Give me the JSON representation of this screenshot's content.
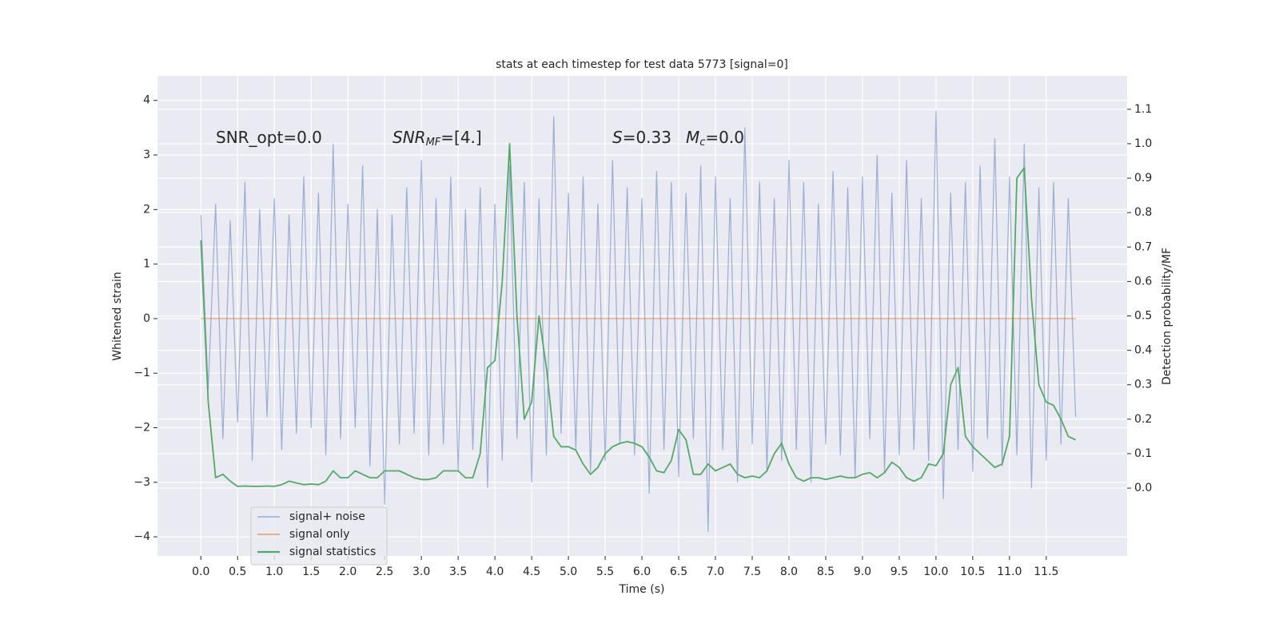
{
  "chart_data": {
    "type": "line",
    "title": "stats at each timestep for test data 5773 [signal=0]",
    "xlabel": "Time (s)",
    "ylabel": "Whitened strain",
    "y2label": "Detection probability/MF",
    "xlim": [
      -0.59,
      12.6
    ],
    "ylim": [
      -4.35,
      4.45
    ],
    "y2lim": [
      -0.197,
      1.197
    ],
    "grid": true,
    "legend": "lower left",
    "xticks": [
      {
        "value": 0,
        "label": "0.0"
      },
      {
        "value": 0.5,
        "label": "0.5"
      },
      {
        "value": 1,
        "label": "1.0"
      },
      {
        "value": 1.5,
        "label": "1.5"
      },
      {
        "value": 2,
        "label": "2.0"
      },
      {
        "value": 2.5,
        "label": "2.5"
      },
      {
        "value": 3,
        "label": "3.0"
      },
      {
        "value": 3.5,
        "label": "3.5"
      },
      {
        "value": 4,
        "label": "4.0"
      },
      {
        "value": 4.5,
        "label": "4.5"
      },
      {
        "value": 5,
        "label": "5.0"
      },
      {
        "value": 5.5,
        "label": "5.5"
      },
      {
        "value": 6,
        "label": "6.0"
      },
      {
        "value": 6.5,
        "label": "6.5"
      },
      {
        "value": 7,
        "label": "7.0"
      },
      {
        "value": 7.5,
        "label": "7.5"
      },
      {
        "value": 8,
        "label": "8.0"
      },
      {
        "value": 8.5,
        "label": "8.5"
      },
      {
        "value": 9,
        "label": "9.0"
      },
      {
        "value": 9.5,
        "label": "9.5"
      },
      {
        "value": 10,
        "label": "10.0"
      },
      {
        "value": 10.5,
        "label": "10.5"
      },
      {
        "value": 11,
        "label": "11.0"
      },
      {
        "value": 11.5,
        "label": "11.5"
      }
    ],
    "yticks": [
      {
        "value": -4,
        "label": "−4"
      },
      {
        "value": -3,
        "label": "−3"
      },
      {
        "value": -2,
        "label": "−2"
      },
      {
        "value": -1,
        "label": "−1"
      },
      0,
      1,
      2,
      3,
      4
    ],
    "y2ticks": [
      {
        "value": 0,
        "label": "0.0"
      },
      {
        "value": 0.1,
        "label": "0.1"
      },
      {
        "value": 0.2,
        "label": "0.2"
      },
      {
        "value": 0.3,
        "label": "0.3"
      },
      {
        "value": 0.4,
        "label": "0.4"
      },
      {
        "value": 0.5,
        "label": "0.5"
      },
      {
        "value": 0.6,
        "label": "0.6"
      },
      {
        "value": 0.7,
        "label": "0.7"
      },
      {
        "value": 0.8,
        "label": "0.8"
      },
      {
        "value": 0.9,
        "label": "0.9"
      },
      {
        "value": 1.0,
        "label": "1.0"
      },
      {
        "value": 1.1,
        "label": "1.1"
      }
    ],
    "annotations": [
      [
        "SNR_opt=0.0"
      ],
      [
        "SNR",
        "MF",
        "=[4.]"
      ],
      [
        "S",
        "=0.33"
      ],
      [
        "M",
        "c",
        "=0.0"
      ]
    ],
    "x": [
      0,
      0.1,
      0.2,
      0.3,
      0.4,
      0.5,
      0.6,
      0.7,
      0.8,
      0.9,
      1,
      1.1,
      1.2,
      1.3,
      1.4,
      1.5,
      1.6,
      1.7,
      1.8,
      1.9,
      2,
      2.1,
      2.2,
      2.3,
      2.4,
      2.5,
      2.6,
      2.7,
      2.8,
      2.9,
      3,
      3.1,
      3.2,
      3.3,
      3.4,
      3.5,
      3.6,
      3.7,
      3.8,
      3.9,
      4,
      4.1,
      4.2,
      4.3,
      4.4,
      4.5,
      4.6,
      4.7,
      4.8,
      4.9,
      5,
      5.1,
      5.2,
      5.3,
      5.4,
      5.5,
      5.6,
      5.7,
      5.8,
      5.9,
      6,
      6.1,
      6.2,
      6.3,
      6.4,
      6.5,
      6.6,
      6.7,
      6.8,
      6.9,
      7,
      7.1,
      7.2,
      7.3,
      7.4,
      7.5,
      7.6,
      7.7,
      7.8,
      7.9,
      8,
      8.1,
      8.2,
      8.3,
      8.4,
      8.5,
      8.6,
      8.7,
      8.8,
      8.9,
      9,
      9.1,
      9.2,
      9.3,
      9.4,
      9.5,
      9.6,
      9.7,
      9.8,
      9.9,
      10,
      10.1,
      10.2,
      10.3,
      10.4,
      10.5,
      10.6,
      10.7,
      10.8,
      10.9,
      11,
      11.1,
      11.2,
      11.3,
      11.4,
      11.5,
      11.6,
      11.7,
      11.8,
      11.9
    ],
    "series": [
      {
        "name": "signal+ noise",
        "color": "#4c72b0",
        "values": [
          1.9,
          -1.3,
          2.1,
          -2.2,
          1.8,
          -1.9,
          2.5,
          -2.6,
          2.0,
          -1.8,
          2.2,
          -2.4,
          1.9,
          -2.1,
          2.6,
          -2.0,
          2.3,
          -2.5,
          3.2,
          -2.2,
          2.1,
          -2.0,
          2.8,
          -2.7,
          2.0,
          -3.4,
          1.9,
          -2.3,
          2.4,
          -2.1,
          2.9,
          -2.5,
          2.2,
          -2.3,
          2.6,
          -2.8,
          2.0,
          -2.4,
          2.4,
          -3.1,
          2.1,
          -2.6,
          2.8,
          -2.2,
          2.5,
          -3.0,
          2.2,
          -2.5,
          3.7,
          -2.1,
          2.3,
          -2.4,
          2.6,
          -2.8,
          2.1,
          -2.6,
          2.9,
          -2.3,
          2.4,
          -2.5,
          2.2,
          -3.2,
          2.7,
          -2.4,
          2.5,
          -2.9,
          2.3,
          -2.2,
          2.8,
          -3.9,
          2.6,
          -2.4,
          2.2,
          -3.0,
          3.5,
          -2.3,
          2.5,
          -2.8,
          2.2,
          -2.6,
          2.9,
          -2.4,
          2.5,
          -3.0,
          2.1,
          -2.3,
          2.7,
          -2.5,
          2.4,
          -2.9,
          2.6,
          -2.2,
          3.0,
          -2.8,
          2.3,
          -2.5,
          2.9,
          -2.4,
          2.2,
          -2.6,
          3.8,
          -3.3,
          2.3,
          -2.4,
          2.5,
          -2.8,
          2.8,
          -2.2,
          3.3,
          -2.7,
          2.6,
          -2.5,
          3.2,
          -3.1,
          2.4,
          -2.6,
          2.5,
          -2.3,
          2.2,
          -1.8
        ]
      },
      {
        "name": "signal only",
        "color": "#dd8452",
        "values": [
          0,
          0,
          0,
          0,
          0,
          0,
          0,
          0,
          0,
          0,
          0,
          0,
          0,
          0,
          0,
          0,
          0,
          0,
          0,
          0,
          0,
          0,
          0,
          0,
          0,
          0,
          0,
          0,
          0,
          0,
          0,
          0,
          0,
          0,
          0,
          0,
          0,
          0,
          0,
          0,
          0,
          0,
          0,
          0,
          0,
          0,
          0,
          0,
          0,
          0,
          0,
          0,
          0,
          0,
          0,
          0,
          0,
          0,
          0,
          0,
          0,
          0,
          0,
          0,
          0,
          0,
          0,
          0,
          0,
          0,
          0,
          0,
          0,
          0,
          0,
          0,
          0,
          0,
          0,
          0,
          0,
          0,
          0,
          0,
          0,
          0,
          0,
          0,
          0,
          0,
          0,
          0,
          0,
          0,
          0,
          0,
          0,
          0,
          0,
          0,
          0,
          0,
          0,
          0,
          0,
          0,
          0,
          0,
          0,
          0,
          0,
          0,
          0,
          0,
          0,
          0,
          0,
          0,
          0,
          0
        ]
      },
      {
        "name": "signal statistics",
        "color": "#55a868",
        "axis": "y2",
        "values": [
          0.72,
          0.25,
          0.03,
          0.04,
          0.02,
          0.005,
          0.006,
          0.005,
          0.005,
          0.006,
          0.005,
          0.01,
          0.02,
          0.015,
          0.01,
          0.012,
          0.01,
          0.02,
          0.05,
          0.03,
          0.03,
          0.05,
          0.04,
          0.03,
          0.03,
          0.05,
          0.05,
          0.05,
          0.04,
          0.03,
          0.025,
          0.025,
          0.03,
          0.05,
          0.05,
          0.05,
          0.03,
          0.03,
          0.1,
          0.35,
          0.37,
          0.6,
          1.0,
          0.5,
          0.2,
          0.25,
          0.5,
          0.35,
          0.15,
          0.12,
          0.12,
          0.11,
          0.07,
          0.04,
          0.06,
          0.1,
          0.12,
          0.13,
          0.135,
          0.13,
          0.12,
          0.09,
          0.05,
          0.045,
          0.08,
          0.17,
          0.14,
          0.04,
          0.04,
          0.07,
          0.05,
          0.06,
          0.07,
          0.04,
          0.03,
          0.035,
          0.03,
          0.05,
          0.1,
          0.13,
          0.07,
          0.03,
          0.02,
          0.03,
          0.03,
          0.025,
          0.03,
          0.035,
          0.03,
          0.03,
          0.04,
          0.045,
          0.03,
          0.045,
          0.075,
          0.06,
          0.03,
          0.02,
          0.03,
          0.07,
          0.065,
          0.1,
          0.3,
          0.35,
          0.15,
          0.12,
          0.1,
          0.08,
          0.06,
          0.07,
          0.15,
          0.9,
          0.93,
          0.55,
          0.3,
          0.25,
          0.24,
          0.2,
          0.15,
          0.14
        ]
      }
    ]
  }
}
